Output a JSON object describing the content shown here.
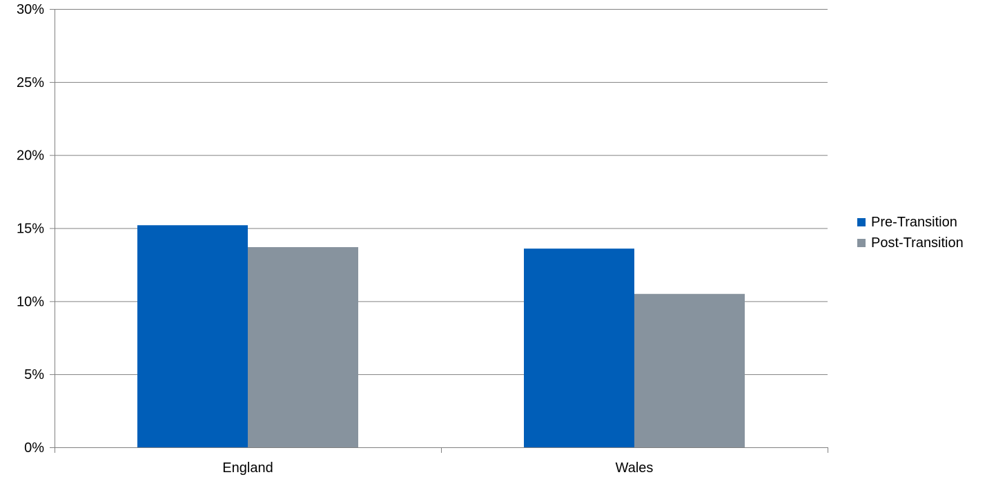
{
  "chart_data": {
    "type": "bar",
    "categories": [
      "England",
      "Wales"
    ],
    "series": [
      {
        "name": "Pre-Transition",
        "values": [
          15.2,
          13.6
        ],
        "color": "#005EB8"
      },
      {
        "name": "Post-Transition",
        "values": [
          13.7,
          10.5
        ],
        "color": "#87939E"
      }
    ],
    "ylim": [
      0,
      30
    ],
    "yticks": [
      0,
      5,
      10,
      15,
      20,
      25,
      30
    ],
    "ytick_labels": [
      "0%",
      "5%",
      "10%",
      "15%",
      "20%",
      "25%",
      "30%"
    ],
    "grid": true,
    "legend_position": "right",
    "title": "",
    "xlabel": "",
    "ylabel": "",
    "gridline_color": "#808080"
  }
}
